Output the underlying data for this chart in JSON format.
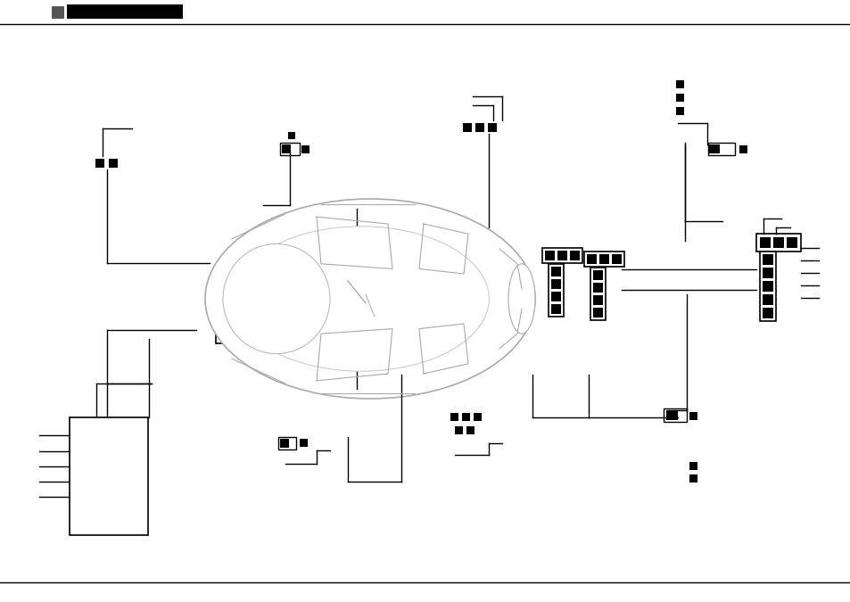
{
  "bg_color": "#ffffff",
  "line_color": "#000000",
  "fig_width": 9.54,
  "fig_height": 6.75,
  "dpi": 100
}
